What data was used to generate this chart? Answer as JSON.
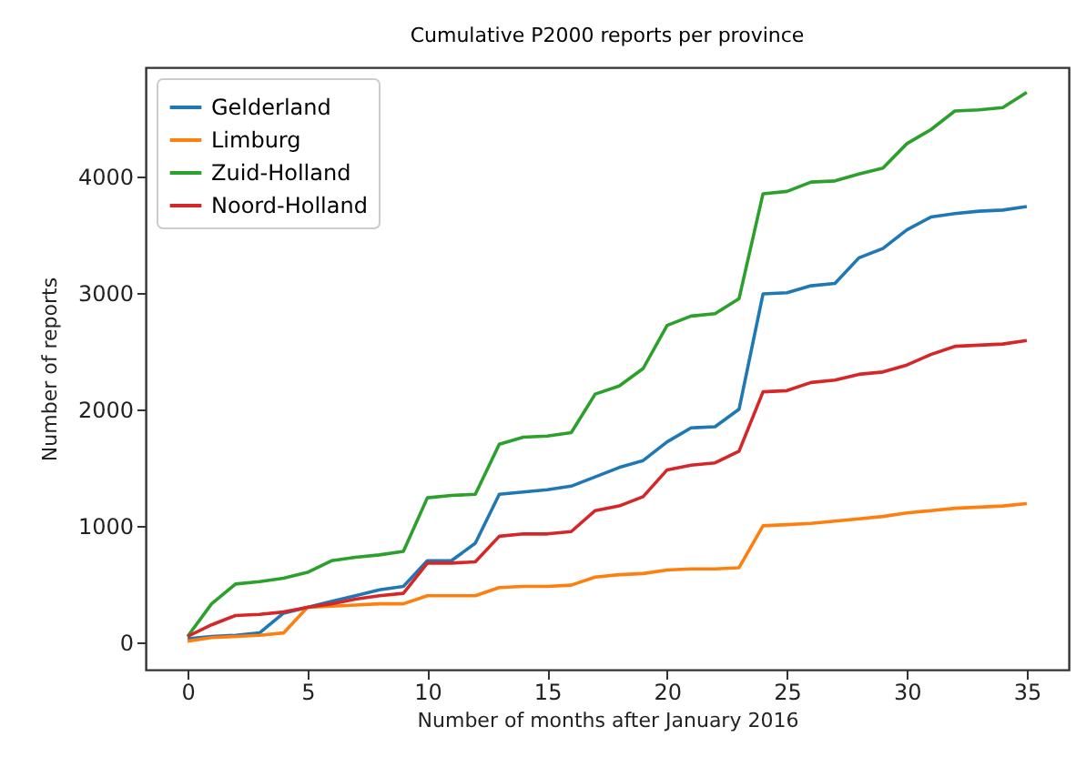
{
  "chart_data": {
    "type": "line",
    "title": "Cumulative P2000 reports per province",
    "xlabel": "Number of months after January 2016",
    "ylabel": "Number of reports",
    "x": [
      0,
      1,
      2,
      3,
      4,
      5,
      6,
      7,
      8,
      9,
      10,
      11,
      12,
      13,
      14,
      15,
      16,
      17,
      18,
      19,
      20,
      21,
      22,
      23,
      24,
      25,
      26,
      27,
      28,
      29,
      30,
      31,
      32,
      33,
      34,
      35
    ],
    "series": [
      {
        "name": "Gelderland",
        "color": "#1f77b4",
        "values": [
          30,
          50,
          60,
          80,
          250,
          300,
          350,
          400,
          450,
          480,
          700,
          700,
          850,
          1270,
          1290,
          1310,
          1340,
          1420,
          1500,
          1560,
          1720,
          1840,
          1850,
          2000,
          2990,
          3000,
          3060,
          3080,
          3300,
          3380,
          3540,
          3650,
          3680,
          3700,
          3710,
          3740
        ]
      },
      {
        "name": "Limburg",
        "color": "#ff7f0e",
        "values": [
          10,
          40,
          50,
          60,
          80,
          300,
          310,
          320,
          330,
          330,
          400,
          400,
          400,
          470,
          480,
          480,
          490,
          560,
          580,
          590,
          620,
          630,
          630,
          640,
          1000,
          1010,
          1020,
          1040,
          1060,
          1080,
          1110,
          1130,
          1150,
          1160,
          1170,
          1190
        ]
      },
      {
        "name": "Zuid-Holland",
        "color": "#2ca02c",
        "values": [
          50,
          330,
          500,
          520,
          550,
          600,
          700,
          730,
          750,
          780,
          1240,
          1260,
          1270,
          1700,
          1760,
          1770,
          1800,
          2130,
          2200,
          2350,
          2720,
          2800,
          2820,
          2950,
          3850,
          3870,
          3950,
          3960,
          4020,
          4070,
          4280,
          4400,
          4560,
          4570,
          4590,
          4720
        ]
      },
      {
        "name": "Noord-Holland",
        "color": "#d62728",
        "values": [
          50,
          150,
          230,
          240,
          260,
          300,
          330,
          370,
          400,
          420,
          680,
          680,
          690,
          910,
          930,
          930,
          950,
          1130,
          1170,
          1250,
          1480,
          1520,
          1540,
          1640,
          2150,
          2160,
          2230,
          2250,
          2300,
          2320,
          2380,
          2470,
          2540,
          2550,
          2560,
          2590
        ]
      }
    ],
    "xlim": [
      -1.75,
      36.75
    ],
    "xticks": [
      0,
      5,
      10,
      15,
      20,
      25,
      30,
      35
    ],
    "ylim": [
      -235,
      4935
    ],
    "yticks": [
      0,
      1000,
      2000,
      3000,
      4000
    ],
    "legend": "top left",
    "grid": false,
    "marker": "none",
    "line_style": "solid"
  }
}
